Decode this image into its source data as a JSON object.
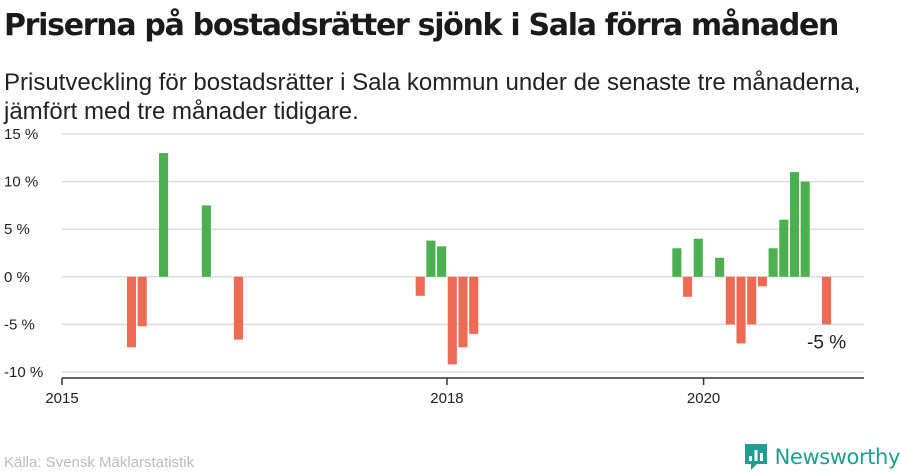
{
  "title": "Priserna på bostadsrätter sjönk i Sala förra månaden",
  "subtitle": "Prisutveckling för bostadsrätter i Sala kommun under de senaste tre månaderna, jämfört med tre månader tidigare.",
  "source": "Källa: Svensk Mäklarstatistik",
  "brand": {
    "name": "Newsworthy",
    "icon": "newsworthy-logo-icon",
    "color": "#1f9e91"
  },
  "colors": {
    "positive": "#4caf50",
    "negative": "#ef6a55",
    "grid": "#dddddd",
    "axis": "#333333"
  },
  "chart_data": {
    "type": "bar",
    "title": "",
    "xlabel": "",
    "ylabel": "",
    "ylim": [
      -10,
      15
    ],
    "y_ticks": [
      15,
      10,
      5,
      0,
      -5,
      -10
    ],
    "y_tick_labels": [
      "15 %",
      "10 %",
      "5 %",
      "0 %",
      "-5 %",
      "-10 %"
    ],
    "x_ticks": [
      "2015-01",
      "2018-01",
      "2020-01"
    ],
    "x_tick_labels": [
      "2015",
      "2018",
      "2020"
    ],
    "xlim": [
      "2015-01",
      "2021-04"
    ],
    "grid": true,
    "values": [
      {
        "date": "2015-07",
        "value": -7.4
      },
      {
        "date": "2015-08",
        "value": -5.2
      },
      {
        "date": "2015-10",
        "value": 13.0
      },
      {
        "date": "2016-02",
        "value": 7.5
      },
      {
        "date": "2016-05",
        "value": -6.6
      },
      {
        "date": "2017-10",
        "value": -2.0
      },
      {
        "date": "2017-11",
        "value": 3.8
      },
      {
        "date": "2017-12",
        "value": 3.2
      },
      {
        "date": "2018-01",
        "value": -9.2
      },
      {
        "date": "2018-02",
        "value": -7.4
      },
      {
        "date": "2018-03",
        "value": -6.0
      },
      {
        "date": "2019-10",
        "value": 3.0
      },
      {
        "date": "2019-11",
        "value": -2.1
      },
      {
        "date": "2019-12",
        "value": 4.0
      },
      {
        "date": "2020-02",
        "value": 2.0
      },
      {
        "date": "2020-03",
        "value": -5.0
      },
      {
        "date": "2020-04",
        "value": -7.0
      },
      {
        "date": "2020-05",
        "value": -5.0
      },
      {
        "date": "2020-06",
        "value": -1.0
      },
      {
        "date": "2020-07",
        "value": 3.0
      },
      {
        "date": "2020-08",
        "value": 6.0
      },
      {
        "date": "2020-09",
        "value": 11.0
      },
      {
        "date": "2020-10",
        "value": 10.0
      },
      {
        "date": "2020-12",
        "value": -5.0
      }
    ],
    "annotation": {
      "date": "2020-12",
      "value": -5.0,
      "text": "-5 %"
    }
  }
}
